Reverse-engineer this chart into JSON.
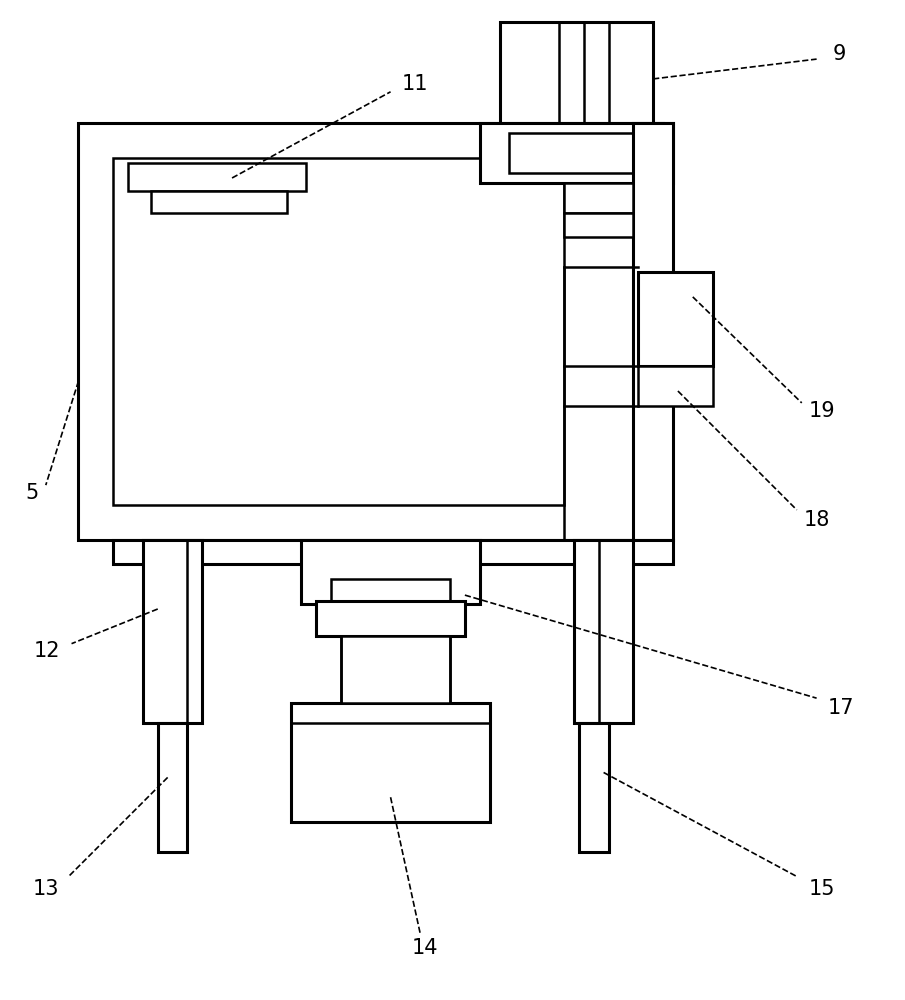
{
  "bg_color": "#ffffff",
  "lc": "#000000",
  "lw": 1.8,
  "lw2": 2.2
}
